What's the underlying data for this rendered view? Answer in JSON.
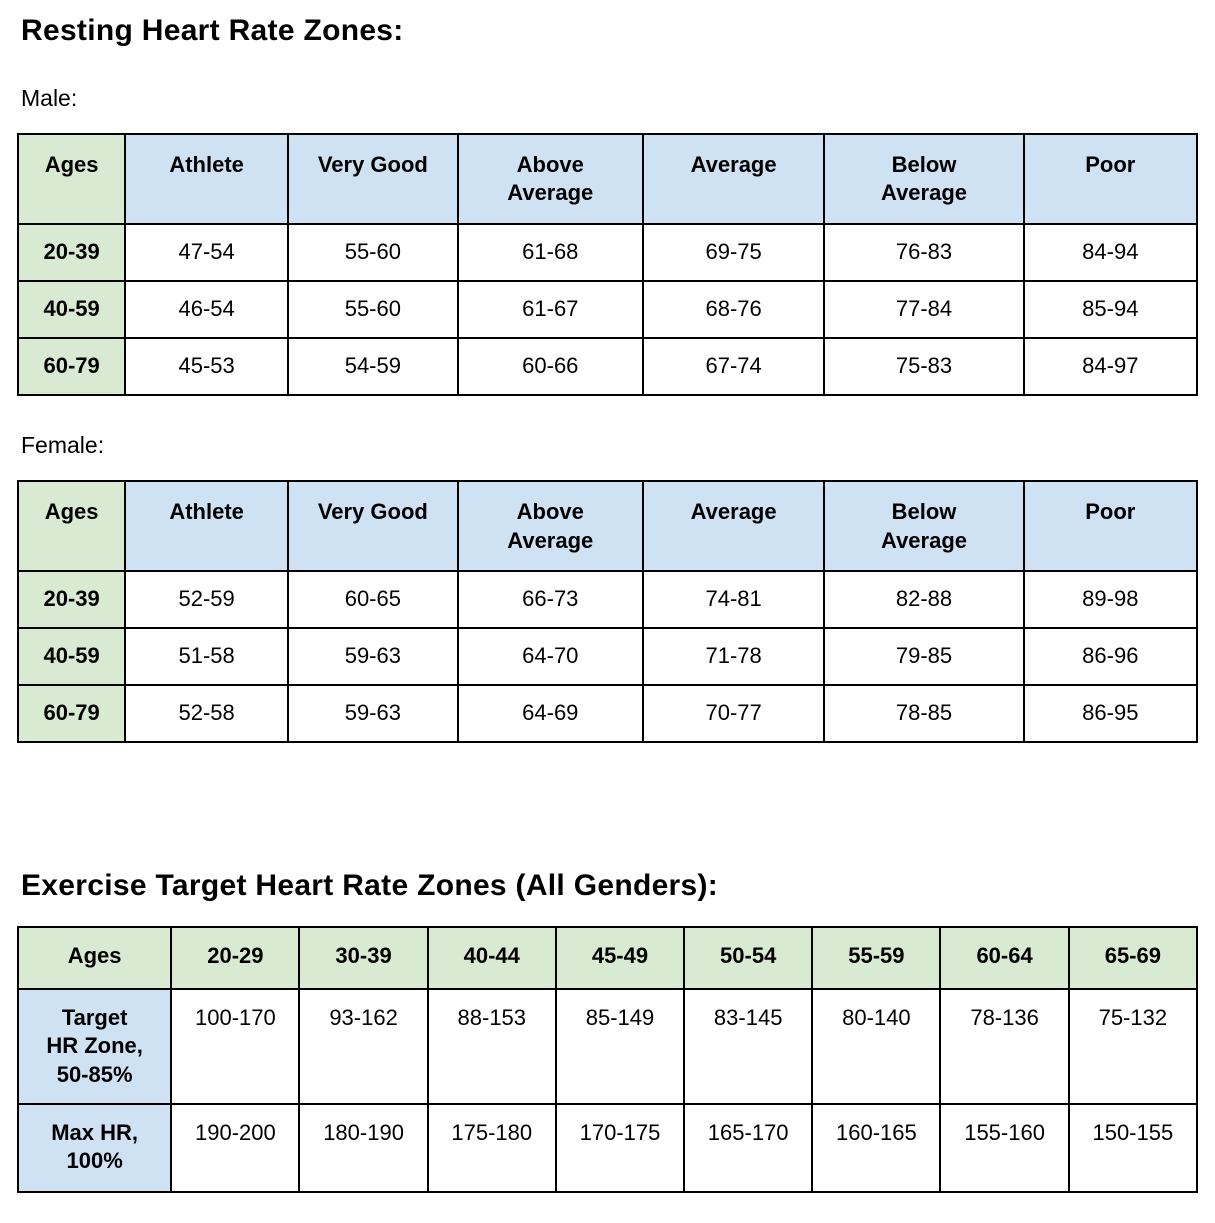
{
  "page": {
    "resting_title": "Resting Heart Rate Zones:",
    "male_label": "Male:",
    "female_label": "Female:",
    "exercise_title": "Exercise Target Heart Rate Zones (All Genders):"
  },
  "colors": {
    "header_green": "#d9ead3",
    "header_blue": "#cfe2f3",
    "border": "#000000",
    "text": "#000000"
  },
  "resting_columns": [
    "Ages",
    "Athlete",
    "Very Good",
    "Above\nAverage",
    "Average",
    "Below\nAverage",
    "Poor"
  ],
  "male_rows": [
    {
      "ages": "20-39",
      "values": [
        "47-54",
        "55-60",
        "61-68",
        "69-75",
        "76-83",
        "84-94"
      ]
    },
    {
      "ages": "40-59",
      "values": [
        "46-54",
        "55-60",
        "61-67",
        "68-76",
        "77-84",
        "85-94"
      ]
    },
    {
      "ages": "60-79",
      "values": [
        "45-53",
        "54-59",
        "60-66",
        "67-74",
        "75-83",
        "84-97"
      ]
    }
  ],
  "female_rows": [
    {
      "ages": "20-39",
      "values": [
        "52-59",
        "60-65",
        "66-73",
        "74-81",
        "82-88",
        "89-98"
      ]
    },
    {
      "ages": "40-59",
      "values": [
        "51-58",
        "59-63",
        "64-70",
        "71-78",
        "79-85",
        "86-96"
      ]
    },
    {
      "ages": "60-79",
      "values": [
        "52-58",
        "59-63",
        "64-69",
        "70-77",
        "78-85",
        "86-95"
      ]
    }
  ],
  "exercise": {
    "columns": [
      "Ages",
      "20-29",
      "30-39",
      "40-44",
      "45-49",
      "50-54",
      "55-59",
      "60-64",
      "65-69"
    ],
    "rows": [
      {
        "label": "Target\nHR Zone,\n50-85%",
        "values": [
          "100-170",
          "93-162",
          "88-153",
          "85-149",
          "83-145",
          "80-140",
          "78-136",
          "75-132"
        ]
      },
      {
        "label": "Max HR,\n100%",
        "values": [
          "190-200",
          "180-190",
          "175-180",
          "170-175",
          "165-170",
          "160-165",
          "155-160",
          "150-155"
        ]
      }
    ]
  }
}
